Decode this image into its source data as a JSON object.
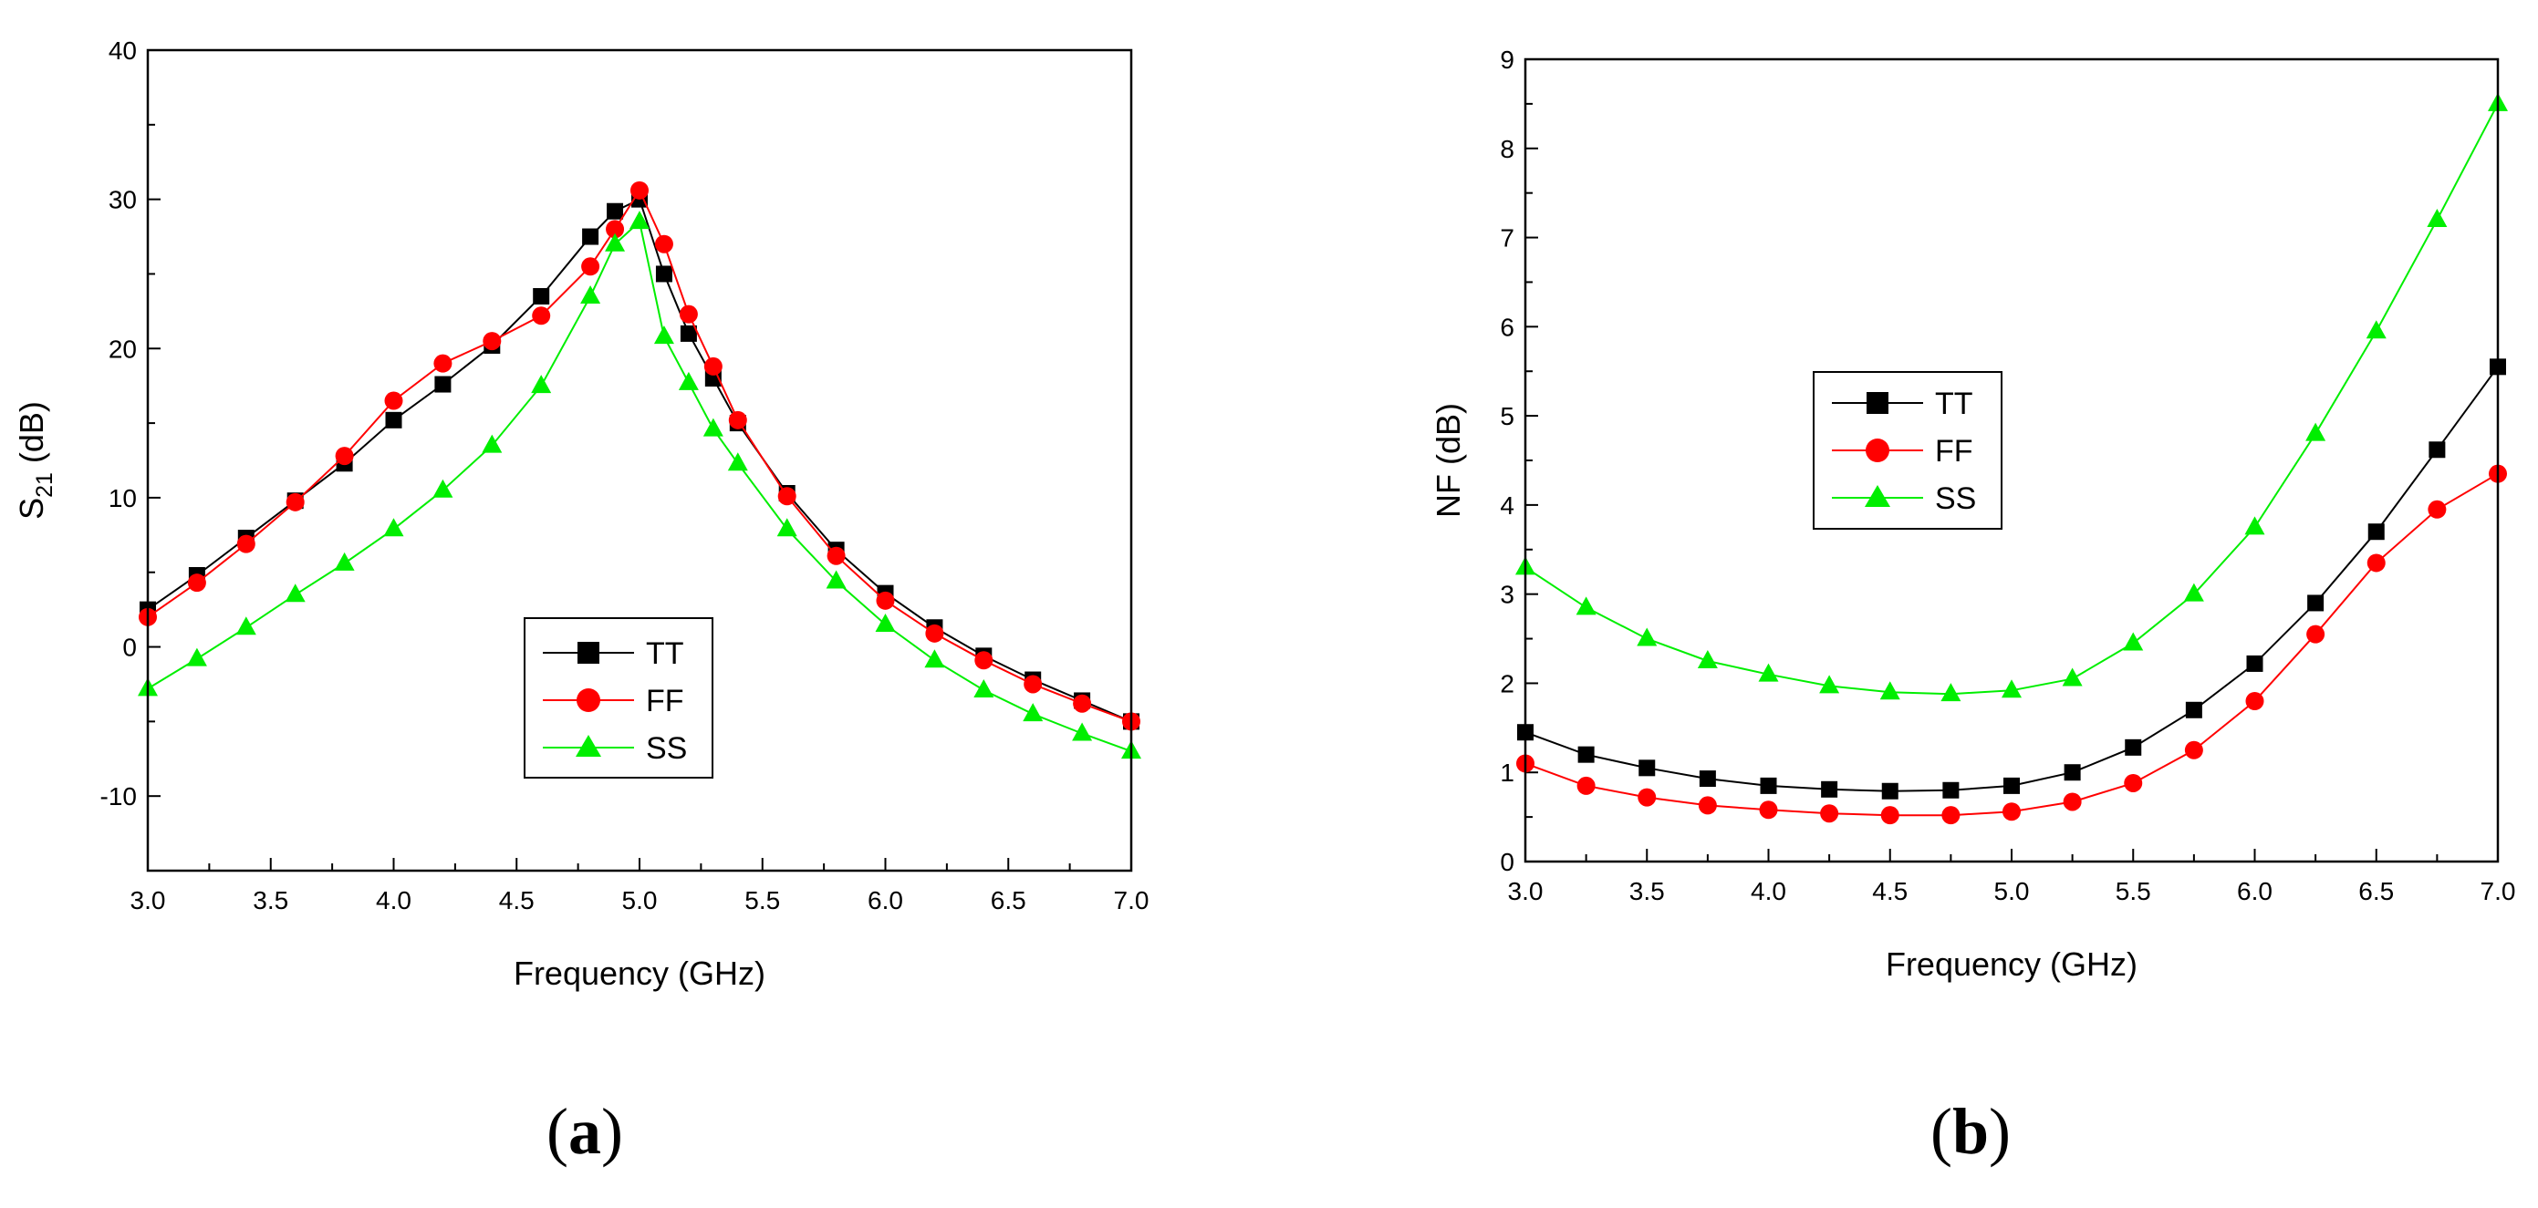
{
  "chart_data": [
    {
      "type": "line",
      "panel_label": "a",
      "xlabel": "Frequency (GHz)",
      "ylabel": {
        "base": "S",
        "subscript": "21",
        "suffix": " (dB)"
      },
      "xlim": [
        3.0,
        7.0
      ],
      "ylim": [
        -15,
        40
      ],
      "xticks": [
        3.0,
        3.5,
        4.0,
        4.5,
        5.0,
        5.5,
        6.0,
        6.5,
        7.0
      ],
      "xtick_labels": [
        "3.0",
        "3.5",
        "4.0",
        "4.5",
        "5.0",
        "5.5",
        "6.0",
        "6.5",
        "7.0"
      ],
      "yticks": [
        -10,
        0,
        10,
        20,
        30,
        40
      ],
      "ytick_labels": [
        "-10",
        "0",
        "10",
        "20",
        "30",
        "40"
      ],
      "legend_position": "center-bottom",
      "series": [
        {
          "name": "TT",
          "color": "#000000",
          "marker": "square",
          "x": [
            3.0,
            3.2,
            3.4,
            3.6,
            3.8,
            4.0,
            4.2,
            4.4,
            4.6,
            4.8,
            4.9,
            5.0,
            5.1,
            5.2,
            5.3,
            5.4,
            5.6,
            5.8,
            6.0,
            6.2,
            6.4,
            6.6,
            6.8,
            7.0
          ],
          "y": [
            2.5,
            4.8,
            7.3,
            9.8,
            12.3,
            15.2,
            17.6,
            20.2,
            23.5,
            27.5,
            29.2,
            30.0,
            25.0,
            21.0,
            18.0,
            15.0,
            10.3,
            6.5,
            3.6,
            1.3,
            -0.6,
            -2.2,
            -3.6,
            -5.0
          ]
        },
        {
          "name": "FF",
          "color": "#ff0000",
          "marker": "circle",
          "x": [
            3.0,
            3.2,
            3.4,
            3.6,
            3.8,
            4.0,
            4.2,
            4.4,
            4.6,
            4.8,
            4.9,
            5.0,
            5.1,
            5.2,
            5.3,
            5.4,
            5.6,
            5.8,
            6.0,
            6.2,
            6.4,
            6.6,
            6.8,
            7.0
          ],
          "y": [
            2.0,
            4.3,
            6.9,
            9.7,
            12.8,
            16.5,
            19.0,
            20.5,
            22.2,
            25.5,
            28.0,
            30.6,
            27.0,
            22.3,
            18.8,
            15.2,
            10.1,
            6.1,
            3.1,
            0.9,
            -0.9,
            -2.5,
            -3.8,
            -5.0
          ]
        },
        {
          "name": "SS",
          "color": "#00ee00",
          "marker": "triangle",
          "x": [
            3.0,
            3.2,
            3.4,
            3.6,
            3.8,
            4.0,
            4.2,
            4.4,
            4.6,
            4.8,
            4.9,
            5.0,
            5.1,
            5.2,
            5.3,
            5.4,
            5.6,
            5.8,
            6.0,
            6.2,
            6.4,
            6.6,
            6.8,
            7.0
          ],
          "y": [
            -2.8,
            -0.8,
            1.3,
            3.5,
            5.6,
            7.9,
            10.5,
            13.5,
            17.5,
            23.5,
            27.0,
            28.5,
            20.8,
            17.7,
            14.6,
            12.3,
            7.9,
            4.4,
            1.5,
            -0.9,
            -2.9,
            -4.5,
            -5.8,
            -7.0
          ]
        }
      ]
    },
    {
      "type": "line",
      "panel_label": "b",
      "xlabel": "Frequency (GHz)",
      "ylabel": {
        "base": "NF",
        "subscript": "",
        "suffix": " (dB)"
      },
      "xlim": [
        3.0,
        7.0
      ],
      "ylim": [
        0,
        9
      ],
      "xticks": [
        3.0,
        3.5,
        4.0,
        4.5,
        5.0,
        5.5,
        6.0,
        6.5,
        7.0
      ],
      "xtick_labels": [
        "3.0",
        "3.5",
        "4.0",
        "4.5",
        "5.0",
        "5.5",
        "6.0",
        "6.5",
        "7.0"
      ],
      "yticks": [
        0,
        1,
        2,
        3,
        4,
        5,
        6,
        7,
        8,
        9
      ],
      "ytick_labels": [
        "0",
        "1",
        "2",
        "3",
        "4",
        "5",
        "6",
        "7",
        "8",
        "9"
      ],
      "legend_position": "upper-center",
      "series": [
        {
          "name": "TT",
          "color": "#000000",
          "marker": "square",
          "x": [
            3.0,
            3.25,
            3.5,
            3.75,
            4.0,
            4.25,
            4.5,
            4.75,
            5.0,
            5.25,
            5.5,
            5.75,
            6.0,
            6.25,
            6.5,
            6.75,
            7.0
          ],
          "y": [
            1.45,
            1.2,
            1.05,
            0.93,
            0.85,
            0.81,
            0.79,
            0.8,
            0.85,
            1.0,
            1.28,
            1.7,
            2.22,
            2.9,
            3.7,
            4.62,
            5.55
          ]
        },
        {
          "name": "FF",
          "color": "#ff0000",
          "marker": "circle",
          "x": [
            3.0,
            3.25,
            3.5,
            3.75,
            4.0,
            4.25,
            4.5,
            4.75,
            5.0,
            5.25,
            5.5,
            5.75,
            6.0,
            6.25,
            6.5,
            6.75,
            7.0
          ],
          "y": [
            1.1,
            0.85,
            0.72,
            0.63,
            0.58,
            0.54,
            0.52,
            0.52,
            0.56,
            0.67,
            0.88,
            1.25,
            1.8,
            2.55,
            3.35,
            3.95,
            4.35
          ]
        },
        {
          "name": "SS",
          "color": "#00ee00",
          "marker": "triangle",
          "x": [
            3.0,
            3.25,
            3.5,
            3.75,
            4.0,
            4.25,
            4.5,
            4.75,
            5.0,
            5.25,
            5.5,
            5.75,
            6.0,
            6.25,
            6.5,
            6.75,
            7.0
          ],
          "y": [
            3.3,
            2.85,
            2.5,
            2.25,
            2.1,
            1.97,
            1.9,
            1.88,
            1.92,
            2.05,
            2.45,
            3.0,
            3.75,
            4.8,
            5.95,
            7.2,
            8.5
          ]
        }
      ]
    }
  ]
}
